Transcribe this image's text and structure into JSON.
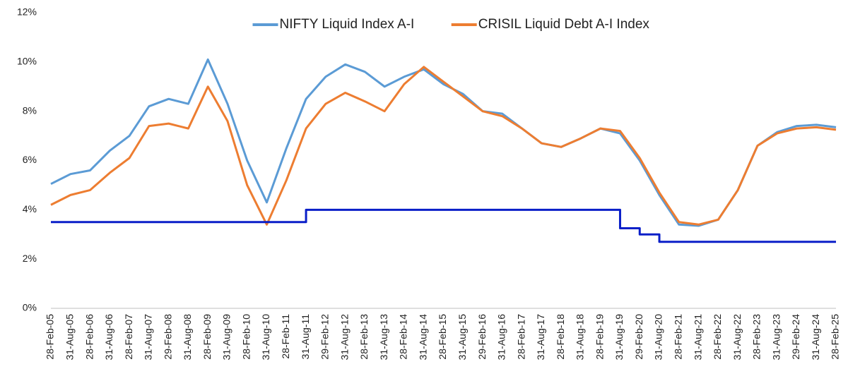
{
  "chart_data": {
    "type": "line",
    "categories": [
      "28-Feb-05",
      "31-Aug-05",
      "28-Feb-06",
      "31-Aug-06",
      "28-Feb-07",
      "31-Aug-07",
      "29-Feb-08",
      "31-Aug-08",
      "28-Feb-09",
      "31-Aug-09",
      "28-Feb-10",
      "31-Aug-10",
      "28-Feb-11",
      "31-Aug-11",
      "29-Feb-12",
      "31-Aug-12",
      "28-Feb-13",
      "31-Aug-13",
      "28-Feb-14",
      "31-Aug-14",
      "28-Feb-15",
      "31-Aug-15",
      "29-Feb-16",
      "31-Aug-16",
      "28-Feb-17",
      "31-Aug-17",
      "28-Feb-18",
      "31-Aug-18",
      "28-Feb-19",
      "31-Aug-19",
      "29-Feb-20",
      "31-Aug-20",
      "28-Feb-21",
      "31-Aug-21",
      "28-Feb-22",
      "31-Aug-22",
      "28-Feb-23",
      "31-Aug-23",
      "29-Feb-24",
      "31-Aug-24",
      "28-Feb-25"
    ],
    "series": [
      {
        "name": "NIFTY Liquid Index A-I",
        "color": "#5b9bd5",
        "values": [
          5.05,
          5.45,
          5.6,
          6.4,
          7.0,
          8.2,
          8.5,
          8.3,
          10.1,
          8.3,
          6.0,
          4.3,
          6.5,
          8.5,
          9.4,
          9.9,
          9.6,
          9.0,
          9.4,
          9.7,
          9.1,
          8.7,
          8.0,
          7.9,
          7.3,
          6.7,
          6.55,
          6.9,
          7.3,
          7.1,
          6.0,
          4.6,
          3.4,
          3.35,
          3.6,
          4.8,
          6.6,
          7.15,
          7.4,
          7.45,
          7.35
        ]
      },
      {
        "name": "CRISIL Liquid Debt A-I Index",
        "color": "#ed7d31",
        "values": [
          4.2,
          4.6,
          4.8,
          5.5,
          6.1,
          7.4,
          7.5,
          7.3,
          9.0,
          7.6,
          5.0,
          3.4,
          5.2,
          7.3,
          8.3,
          8.75,
          8.4,
          8.0,
          9.1,
          9.8,
          9.2,
          8.6,
          8.0,
          7.8,
          7.3,
          6.7,
          6.55,
          6.9,
          7.3,
          7.2,
          6.1,
          4.7,
          3.5,
          3.4,
          3.6,
          4.8,
          6.6,
          7.1,
          7.3,
          7.35,
          7.25
        ]
      },
      {
        "color": "#0a1fc8",
        "step": true,
        "values": [
          3.5,
          3.5,
          3.5,
          3.5,
          3.5,
          3.5,
          3.5,
          3.5,
          3.5,
          3.5,
          3.5,
          3.5,
          3.5,
          4.0,
          4.0,
          4.0,
          4.0,
          4.0,
          4.0,
          4.0,
          4.0,
          4.0,
          4.0,
          4.0,
          4.0,
          4.0,
          4.0,
          4.0,
          4.0,
          3.25,
          3.0,
          2.7,
          2.7,
          2.7,
          2.7,
          2.7,
          2.7,
          2.7,
          2.7,
          2.7,
          2.7
        ]
      }
    ],
    "ylim": [
      0,
      12
    ],
    "yticks": [
      {
        "value": 0,
        "label": "0%"
      },
      {
        "value": 2,
        "label": "2%"
      },
      {
        "value": 4,
        "label": "4%"
      },
      {
        "value": 6,
        "label": "6%"
      },
      {
        "value": 8,
        "label": "8%"
      },
      {
        "value": 10,
        "label": "10%"
      },
      {
        "value": 12,
        "label": "12%"
      }
    ],
    "legend": "top"
  }
}
